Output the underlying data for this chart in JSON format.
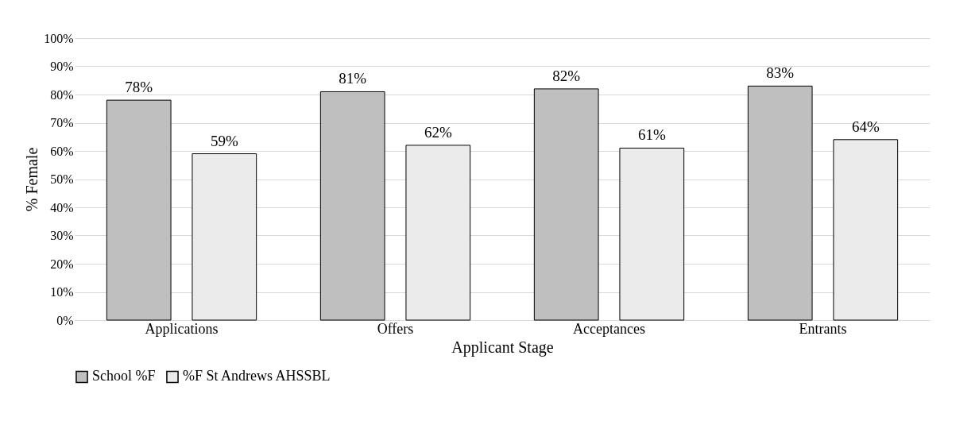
{
  "chart_data": {
    "type": "bar",
    "xlabel": "Applicant Stage",
    "ylabel": "% Female",
    "categories": [
      "Applications",
      "Offers",
      "Acceptances",
      "Entrants"
    ],
    "series": [
      {
        "name": "School %F",
        "color": "#bfbfbf",
        "values": [
          78,
          81,
          82,
          83
        ],
        "value_labels": [
          "78%",
          "81%",
          "82%",
          "83%"
        ]
      },
      {
        "name": "%F St Andrews AHSSBL",
        "color": "#ebebeb",
        "values": [
          59,
          62,
          61,
          64
        ],
        "value_labels": [
          "59%",
          "62%",
          "61%",
          "64%"
        ]
      }
    ],
    "ylim": [
      0,
      100
    ],
    "yticks": [
      {
        "value": 0,
        "label": "0%"
      },
      {
        "value": 10,
        "label": "10%"
      },
      {
        "value": 20,
        "label": "20%"
      },
      {
        "value": 30,
        "label": "30%"
      },
      {
        "value": 40,
        "label": "40%"
      },
      {
        "value": 50,
        "label": "50%"
      },
      {
        "value": 60,
        "label": "60%"
      },
      {
        "value": 70,
        "label": "70%"
      },
      {
        "value": 80,
        "label": "80%"
      },
      {
        "value": 90,
        "label": "90%"
      },
      {
        "value": 100,
        "label": "100%"
      }
    ],
    "grid": "y",
    "legend": "bottom"
  }
}
